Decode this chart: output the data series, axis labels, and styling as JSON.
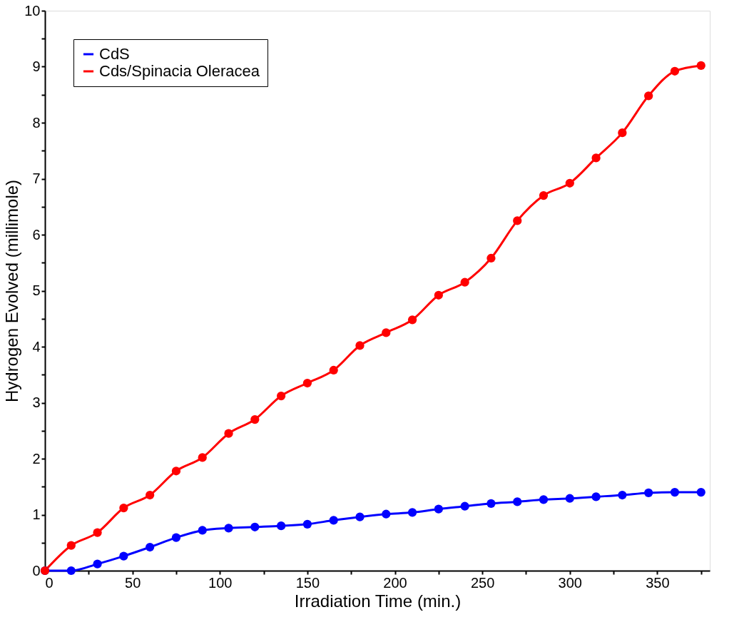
{
  "chart_data": {
    "type": "line",
    "xlabel": "Irradiation Time (min.)",
    "ylabel": "Hydrogen Evolved (millimole)",
    "x": [
      0,
      15,
      30,
      45,
      60,
      75,
      90,
      105,
      120,
      135,
      150,
      165,
      180,
      195,
      210,
      225,
      240,
      255,
      270,
      285,
      300,
      315,
      330,
      345,
      360,
      375
    ],
    "series": [
      {
        "name": "CdS",
        "color": "#0000ff",
        "values": [
          0,
          0.0,
          0.12,
          0.26,
          0.42,
          0.59,
          0.72,
          0.76,
          0.78,
          0.8,
          0.83,
          0.9,
          0.96,
          1.01,
          1.04,
          1.1,
          1.15,
          1.2,
          1.23,
          1.27,
          1.29,
          1.32,
          1.35,
          1.39,
          1.4,
          1.4
        ]
      },
      {
        "name": "Cds/Spinacia Oleracea",
        "color": "#ff0000",
        "values": [
          0,
          0.45,
          0.68,
          1.12,
          1.35,
          1.78,
          2.02,
          2.45,
          2.7,
          3.12,
          3.35,
          3.58,
          4.02,
          4.25,
          4.48,
          4.92,
          5.15,
          5.58,
          6.25,
          6.7,
          6.92,
          7.37,
          7.82,
          8.48,
          8.92,
          9.02
        ]
      }
    ],
    "xlim": [
      0,
      380
    ],
    "xticks": [
      0,
      {
        "value": 25,
        "label": null
      },
      50,
      {
        "value": 75,
        "label": null
      },
      100,
      {
        "value": 125,
        "label": null
      },
      150,
      {
        "value": 175,
        "label": null
      },
      200,
      {
        "value": 225,
        "label": null
      },
      250,
      {
        "value": 275,
        "label": null
      },
      300,
      {
        "value": 325,
        "label": null
      },
      350,
      {
        "value": 375,
        "label": null
      }
    ],
    "ylim": [
      0,
      10
    ],
    "yticks": [
      0,
      {
        "value": 0.5,
        "label": null
      },
      1,
      {
        "value": 1.5,
        "label": null
      },
      2,
      {
        "value": 2.5,
        "label": null
      },
      3,
      {
        "value": 3.5,
        "label": null
      },
      4,
      {
        "value": 4.5,
        "label": null
      },
      5,
      {
        "value": 5.5,
        "label": null
      },
      6,
      {
        "value": 6.5,
        "label": null
      },
      7,
      {
        "value": 7.5,
        "label": null
      },
      8,
      {
        "value": 8.5,
        "label": null
      },
      9,
      {
        "value": 9.5,
        "label": null
      },
      10
    ],
    "legend": "top left",
    "marker": "circle",
    "line_style": "solid",
    "grid": false
  }
}
